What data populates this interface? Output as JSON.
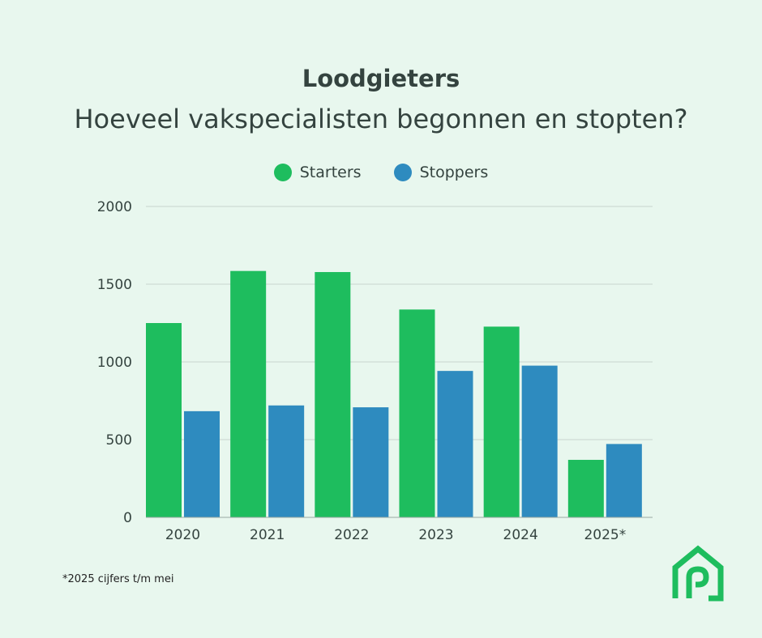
{
  "colors": {
    "background": "#e8f7ee",
    "starters": "#1ebd5e",
    "stoppers": "#2e8bbf",
    "grid": "#c9d6cf",
    "text": "#34433f",
    "logo": "#1ebd5e"
  },
  "logo_icon": "house-pipe-icon",
  "footnote": "*2025 cijfers t/m mei",
  "chart_data": {
    "type": "bar",
    "title": "Loodgieters",
    "subtitle": "Hoeveel vakspecialisten begonnen en stopten?",
    "categories": [
      "2020",
      "2021",
      "2022",
      "2023",
      "2024",
      "2025*"
    ],
    "series": [
      {
        "name": "Starters",
        "values": [
          1250,
          1585,
          1578,
          1337,
          1227,
          370
        ]
      },
      {
        "name": "Stoppers",
        "values": [
          683,
          720,
          708,
          942,
          976,
          472
        ]
      }
    ],
    "ylim": [
      0,
      2000
    ],
    "yticks": [
      0,
      500,
      1000,
      1500,
      2000
    ],
    "ytick_labels": [
      "0",
      "500",
      "1000",
      "1500",
      "2000"
    ],
    "grid": true,
    "legend_position": "top-center",
    "xlabel": "",
    "ylabel": ""
  }
}
